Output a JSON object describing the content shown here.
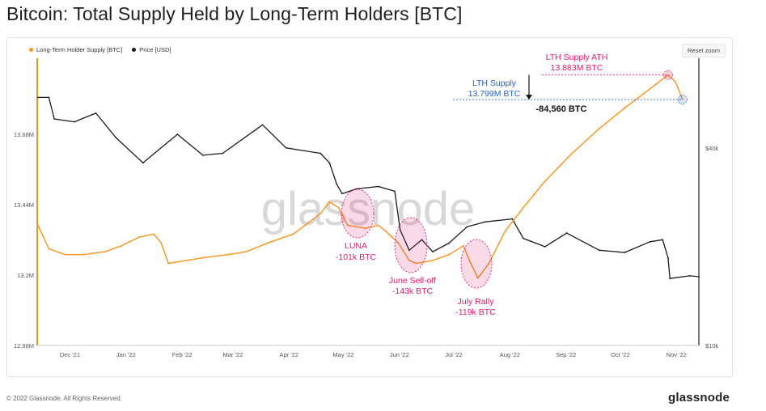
{
  "page": {
    "title": "Bitcoin: Total Supply Held by Long-Term Holders [BTC]",
    "reset_zoom": "Reset zoom",
    "copyright": "© 2022 Glassnode. All Rights Reserved.",
    "brand": "glassnode",
    "watermark": "glassnode"
  },
  "chart_data": {
    "type": "line",
    "title": "Bitcoin: Total Supply Held by Long-Term Holders [BTC]",
    "legend_position": "top-left",
    "grid": false,
    "x_ticks": [
      "Dec '21",
      "Jan '22",
      "Feb '22",
      "Mar '22",
      "Apr '22",
      "May '22",
      "Jun '22",
      "Jul '22",
      "Aug '22",
      "Sep '22",
      "Oct '22",
      "Nov '22"
    ],
    "x_range": [
      "2021-11-25",
      "2022-11-25"
    ],
    "y_left": {
      "ticks": [
        "12.96M",
        "13.2M",
        "13.44M",
        "13.68M"
      ],
      "range": [
        12.96,
        13.94
      ],
      "unit": "M BTC"
    },
    "y_right": {
      "ticks": [
        "$10k",
        "$40k"
      ],
      "scale": "log",
      "range": [
        10000,
        75000
      ]
    },
    "colors": {
      "lth_supply": "#f7931a",
      "price": "#1a1a1a",
      "annotation_pink": "#e8176b",
      "annotation_blue": "#1e63e0"
    },
    "series": [
      {
        "name": "Long-Term Holder Supply [BTC]",
        "axis": "left",
        "x": [
          "2021-11-25",
          "2021-12-01",
          "2021-12-10",
          "2021-12-20",
          "2022-01-01",
          "2022-01-10",
          "2022-01-20",
          "2022-01-28",
          "2022-02-01",
          "2022-02-05",
          "2022-02-15",
          "2022-02-25",
          "2022-03-10",
          "2022-03-20",
          "2022-04-01",
          "2022-04-15",
          "2022-04-30",
          "2022-05-05",
          "2022-05-10",
          "2022-05-15",
          "2022-05-25",
          "2022-06-01",
          "2022-06-05",
          "2022-06-12",
          "2022-06-18",
          "2022-06-22",
          "2022-07-01",
          "2022-07-10",
          "2022-07-18",
          "2022-07-22",
          "2022-07-26",
          "2022-08-01",
          "2022-08-10",
          "2022-08-20",
          "2022-09-01",
          "2022-09-15",
          "2022-10-01",
          "2022-10-15",
          "2022-11-01",
          "2022-11-08",
          "2022-11-12",
          "2022-11-16"
        ],
        "values": [
          13.37,
          13.29,
          13.27,
          13.27,
          13.28,
          13.3,
          13.33,
          13.34,
          13.31,
          13.24,
          13.25,
          13.26,
          13.27,
          13.28,
          13.31,
          13.34,
          13.41,
          13.45,
          13.43,
          13.37,
          13.36,
          13.37,
          13.35,
          13.31,
          13.25,
          13.24,
          13.25,
          13.27,
          13.3,
          13.24,
          13.19,
          13.24,
          13.35,
          13.43,
          13.52,
          13.61,
          13.7,
          13.77,
          13.85,
          13.883,
          13.86,
          13.799
        ]
      },
      {
        "name": "Price [USD]",
        "axis": "right",
        "x": [
          "2021-11-25",
          "2021-12-01",
          "2021-12-04",
          "2021-12-15",
          "2021-12-27",
          "2022-01-07",
          "2022-01-22",
          "2022-02-10",
          "2022-02-24",
          "2022-03-07",
          "2022-03-29",
          "2022-04-11",
          "2022-04-30",
          "2022-05-05",
          "2022-05-09",
          "2022-05-12",
          "2022-05-20",
          "2022-06-01",
          "2022-06-10",
          "2022-06-13",
          "2022-06-18",
          "2022-06-25",
          "2022-07-01",
          "2022-07-10",
          "2022-07-20",
          "2022-07-30",
          "2022-08-14",
          "2022-08-20",
          "2022-09-01",
          "2022-09-13",
          "2022-10-01",
          "2022-10-15",
          "2022-10-29",
          "2022-11-05",
          "2022-11-08",
          "2022-11-09",
          "2022-11-20",
          "2022-11-25"
        ],
        "values": [
          57000,
          57000,
          49000,
          48000,
          51000,
          43000,
          36000,
          44000,
          38000,
          38500,
          47000,
          40000,
          38500,
          36000,
          31000,
          29000,
          30000,
          30500,
          29500,
          22500,
          19500,
          21000,
          19300,
          20500,
          23000,
          23800,
          24300,
          21200,
          20000,
          22000,
          19500,
          19200,
          20700,
          21000,
          18500,
          16000,
          16300,
          16200
        ]
      }
    ],
    "annotations": [
      {
        "label": "LTH Supply ATH",
        "value": "13.883M BTC"
      },
      {
        "label": "LTH Supply",
        "value": "13.799M BTC"
      },
      {
        "label": "-84,560 BTC"
      },
      {
        "label": "LUNA",
        "value": "-101k BTC"
      },
      {
        "label": "June Sell-off",
        "value": "-143k BTC"
      },
      {
        "label": "July Rally",
        "value": "-119k BTC"
      }
    ]
  }
}
